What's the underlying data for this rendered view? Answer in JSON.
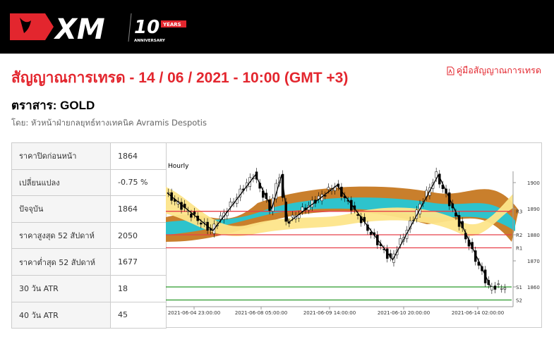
{
  "header": {
    "logo_text": "XM",
    "logo_badge": "10",
    "logo_years": "YEARS",
    "logo_sub": "ANNIVERSARY"
  },
  "title": "สัญญาณการเทรด - 14 / 06 / 2021 - 10:00 (GMT +3)",
  "guide_link": "คู่มือสัญญาณการเทรด",
  "instrument": "ตราสาร: GOLD",
  "byline": "โดย: หัวหน้าฝ่ายกลยุทธ์ทางเทคนิค Avramis Despotis",
  "stats": [
    {
      "label": "ราคาปิดก่อนหน้า",
      "value": "1864"
    },
    {
      "label": "เปลี่ยนแปลง",
      "value": "-0.75 %"
    },
    {
      "label": "ปัจจุบัน",
      "value": "1864"
    },
    {
      "label": "ราคาสูงสุด 52 สัปดาห์",
      "value": "2050"
    },
    {
      "label": "ราคาต่ำสุด 52 สัปดาห์",
      "value": "1677"
    },
    {
      "label": "30 วัน ATR",
      "value": "18"
    },
    {
      "label": "40 วัน ATR",
      "value": "45"
    }
  ],
  "chart_data": {
    "type": "candlestick",
    "title": "Hourly",
    "y_ticks": [
      1900,
      1890,
      1880,
      1870,
      1860
    ],
    "x_ticks": [
      "2021-06-04 23:00:00",
      "2021-06-08 05:00:00",
      "2021-06-09 14:00:00",
      "2021-06-10 20:00:00",
      "2021-06-14 02:00:00"
    ],
    "levels": [
      {
        "name": "R3",
        "price": 1889,
        "color": "#e8404a"
      },
      {
        "name": "R2",
        "price": 1880,
        "color": "#e8404a"
      },
      {
        "name": "R1",
        "price": 1875,
        "color": "#e8404a"
      },
      {
        "name": "S1",
        "price": 1860,
        "color": "#2a9a2a"
      },
      {
        "name": "S2",
        "price": 1855,
        "color": "#2a9a2a"
      }
    ],
    "zigzag": [
      [
        0,
        1896
      ],
      [
        14,
        1881.6
      ],
      [
        27,
        1903
      ],
      [
        32,
        1890
      ],
      [
        35,
        1903
      ],
      [
        37,
        1884.6
      ],
      [
        52,
        1899
      ],
      [
        69,
        1870.4
      ],
      [
        83,
        1903
      ],
      [
        99,
        1860
      ]
    ]
  }
}
